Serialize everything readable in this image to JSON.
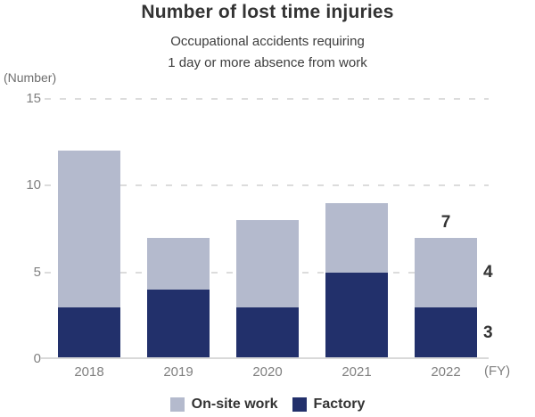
{
  "title": "Number of lost time injuries",
  "subtitle_line1": "Occupational accidents requiring",
  "subtitle_line2": "1 day or more absence from work",
  "y_axis_unit": "(Number)",
  "x_axis_unit": "(FY)",
  "colors": {
    "onsite": "#b4bacd",
    "factory": "#22306b",
    "grid": "#dcdcdc",
    "axis_line": "#d9d9d9",
    "tick_text": "#808080",
    "title_text": "#333333"
  },
  "chart_data": {
    "type": "bar",
    "stacked": true,
    "title": "Number of lost time injuries",
    "subtitle": "Occupational accidents requiring 1 day or more absence from work",
    "xlabel": "(FY)",
    "ylabel": "(Number)",
    "categories": [
      "2018",
      "2019",
      "2020",
      "2021",
      "2022"
    ],
    "series": [
      {
        "name": "Factory",
        "color": "#22306b",
        "values": [
          3,
          4,
          3,
          5,
          3
        ]
      },
      {
        "name": "On-site work",
        "color": "#b4bacd",
        "values": [
          9,
          3,
          5,
          4,
          4
        ]
      }
    ],
    "totals": [
      12,
      7,
      8,
      9,
      7
    ],
    "ylim": [
      0,
      15
    ],
    "yticks": [
      0,
      5,
      10,
      15
    ],
    "grid": "horizontal dashed",
    "legend_position": "bottom",
    "annotations": [
      {
        "text": "7",
        "category": "2022",
        "placement": "above_total"
      },
      {
        "text": "4",
        "category": "2022",
        "series": "On-site work",
        "placement": "right_of_segment"
      },
      {
        "text": "3",
        "category": "2022",
        "series": "Factory",
        "placement": "right_of_segment"
      }
    ]
  },
  "legend": {
    "items": [
      {
        "label": "On-site work",
        "color": "#b4bacd"
      },
      {
        "label": "Factory",
        "color": "#22306b"
      }
    ]
  }
}
